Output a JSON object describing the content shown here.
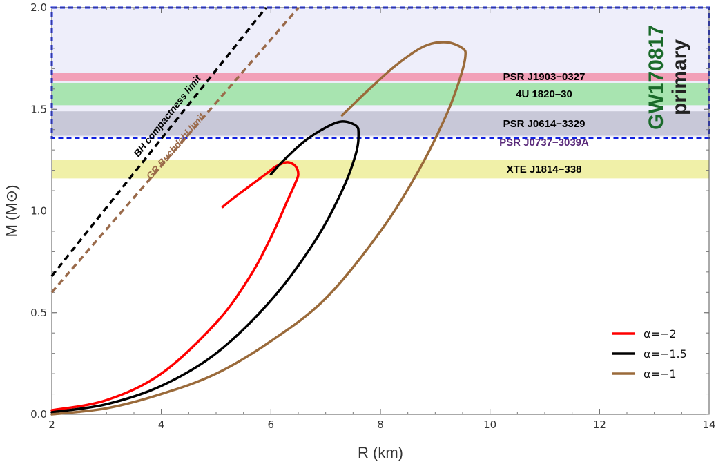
{
  "chart_data": {
    "type": "line",
    "xlabel": "R (km)",
    "ylabel": "M (M⊙)",
    "xlim": [
      2,
      14
    ],
    "ylim": [
      0,
      2.0
    ],
    "xticks": [
      2,
      4,
      6,
      8,
      10,
      12,
      14
    ],
    "yticks": [
      0.0,
      0.5,
      1.0,
      1.5,
      2.0
    ],
    "xtick_labels": [
      "2",
      "4",
      "6",
      "8",
      "10",
      "12",
      "14"
    ],
    "ytick_labels": [
      "0.0",
      "0.5",
      "1.0",
      "1.5",
      "2.0"
    ],
    "series": [
      {
        "name": "α=−2",
        "color": "#ff0000",
        "x": [
          2.0,
          3.0,
          4.0,
          5.0,
          5.6,
          6.0,
          6.3,
          6.45,
          6.5,
          6.45,
          6.3,
          6.1,
          5.9,
          5.6,
          5.3,
          5.12
        ],
        "y": [
          0.02,
          0.07,
          0.2,
          0.45,
          0.67,
          0.87,
          1.05,
          1.14,
          1.18,
          1.22,
          1.24,
          1.22,
          1.18,
          1.12,
          1.06,
          1.02
        ]
      },
      {
        "name": "α=−1.5",
        "color": "#000000",
        "x": [
          2.0,
          3.0,
          4.0,
          5.0,
          6.0,
          6.8,
          7.3,
          7.55,
          7.6,
          7.55,
          7.3,
          7.0,
          6.6,
          6.2,
          6.0
        ],
        "y": [
          0.01,
          0.05,
          0.14,
          0.3,
          0.56,
          0.85,
          1.1,
          1.28,
          1.38,
          1.42,
          1.44,
          1.41,
          1.34,
          1.24,
          1.18
        ]
      },
      {
        "name": "α=−1",
        "color": "#9a6a3a",
        "x": [
          2.0,
          3.0,
          4.0,
          5.0,
          6.0,
          7.0,
          8.0,
          8.7,
          9.2,
          9.45,
          9.55,
          9.5,
          9.2,
          8.8,
          8.3,
          7.8,
          7.3
        ],
        "y": [
          0.0,
          0.03,
          0.1,
          0.2,
          0.36,
          0.57,
          0.9,
          1.2,
          1.47,
          1.65,
          1.76,
          1.8,
          1.83,
          1.81,
          1.72,
          1.6,
          1.47
        ]
      }
    ],
    "limit_lines": [
      {
        "name": "BH compactness limit",
        "color": "#000000",
        "x": [
          2.0,
          6.0
        ],
        "y": [
          0.68,
          2.03
        ]
      },
      {
        "name": "GR Buchdahl limit",
        "color": "#9a6a4a",
        "x": [
          2.0,
          6.6
        ],
        "y": [
          0.6,
          2.03
        ]
      }
    ],
    "bands": [
      {
        "label": "PSR J1903−0327",
        "y0": 1.64,
        "y1": 1.68,
        "color": "#f2a0b8",
        "text_color": "#000000"
      },
      {
        "label": "4U 1820–30",
        "y0": 1.52,
        "y1": 1.63,
        "color": "#a8e4b0",
        "text_color": "#000000"
      },
      {
        "label": "PSR J0614−3329",
        "y0": 1.37,
        "y1": 1.49,
        "color": "#c8c8d8",
        "text_color": "#000000"
      },
      {
        "label": "PSR J0737−3039A",
        "y0": 1.338,
        "y1": 1.338,
        "color": "#6a3a8a",
        "text_color": "#5a2a7a"
      },
      {
        "label": "XTE J1814−338",
        "y0": 1.16,
        "y1": 1.25,
        "color": "#f0f0a8",
        "text_color": "#000000"
      }
    ],
    "gw_region": {
      "label_line1": "GW170817",
      "label_line2": "primary",
      "y0": 1.36,
      "y1": 2.0,
      "fill": "#eeeefa",
      "border": "#1020e0",
      "text_color": "#1a6a2a",
      "text_color2": "#222222"
    },
    "legend_position": "bottom-right"
  }
}
